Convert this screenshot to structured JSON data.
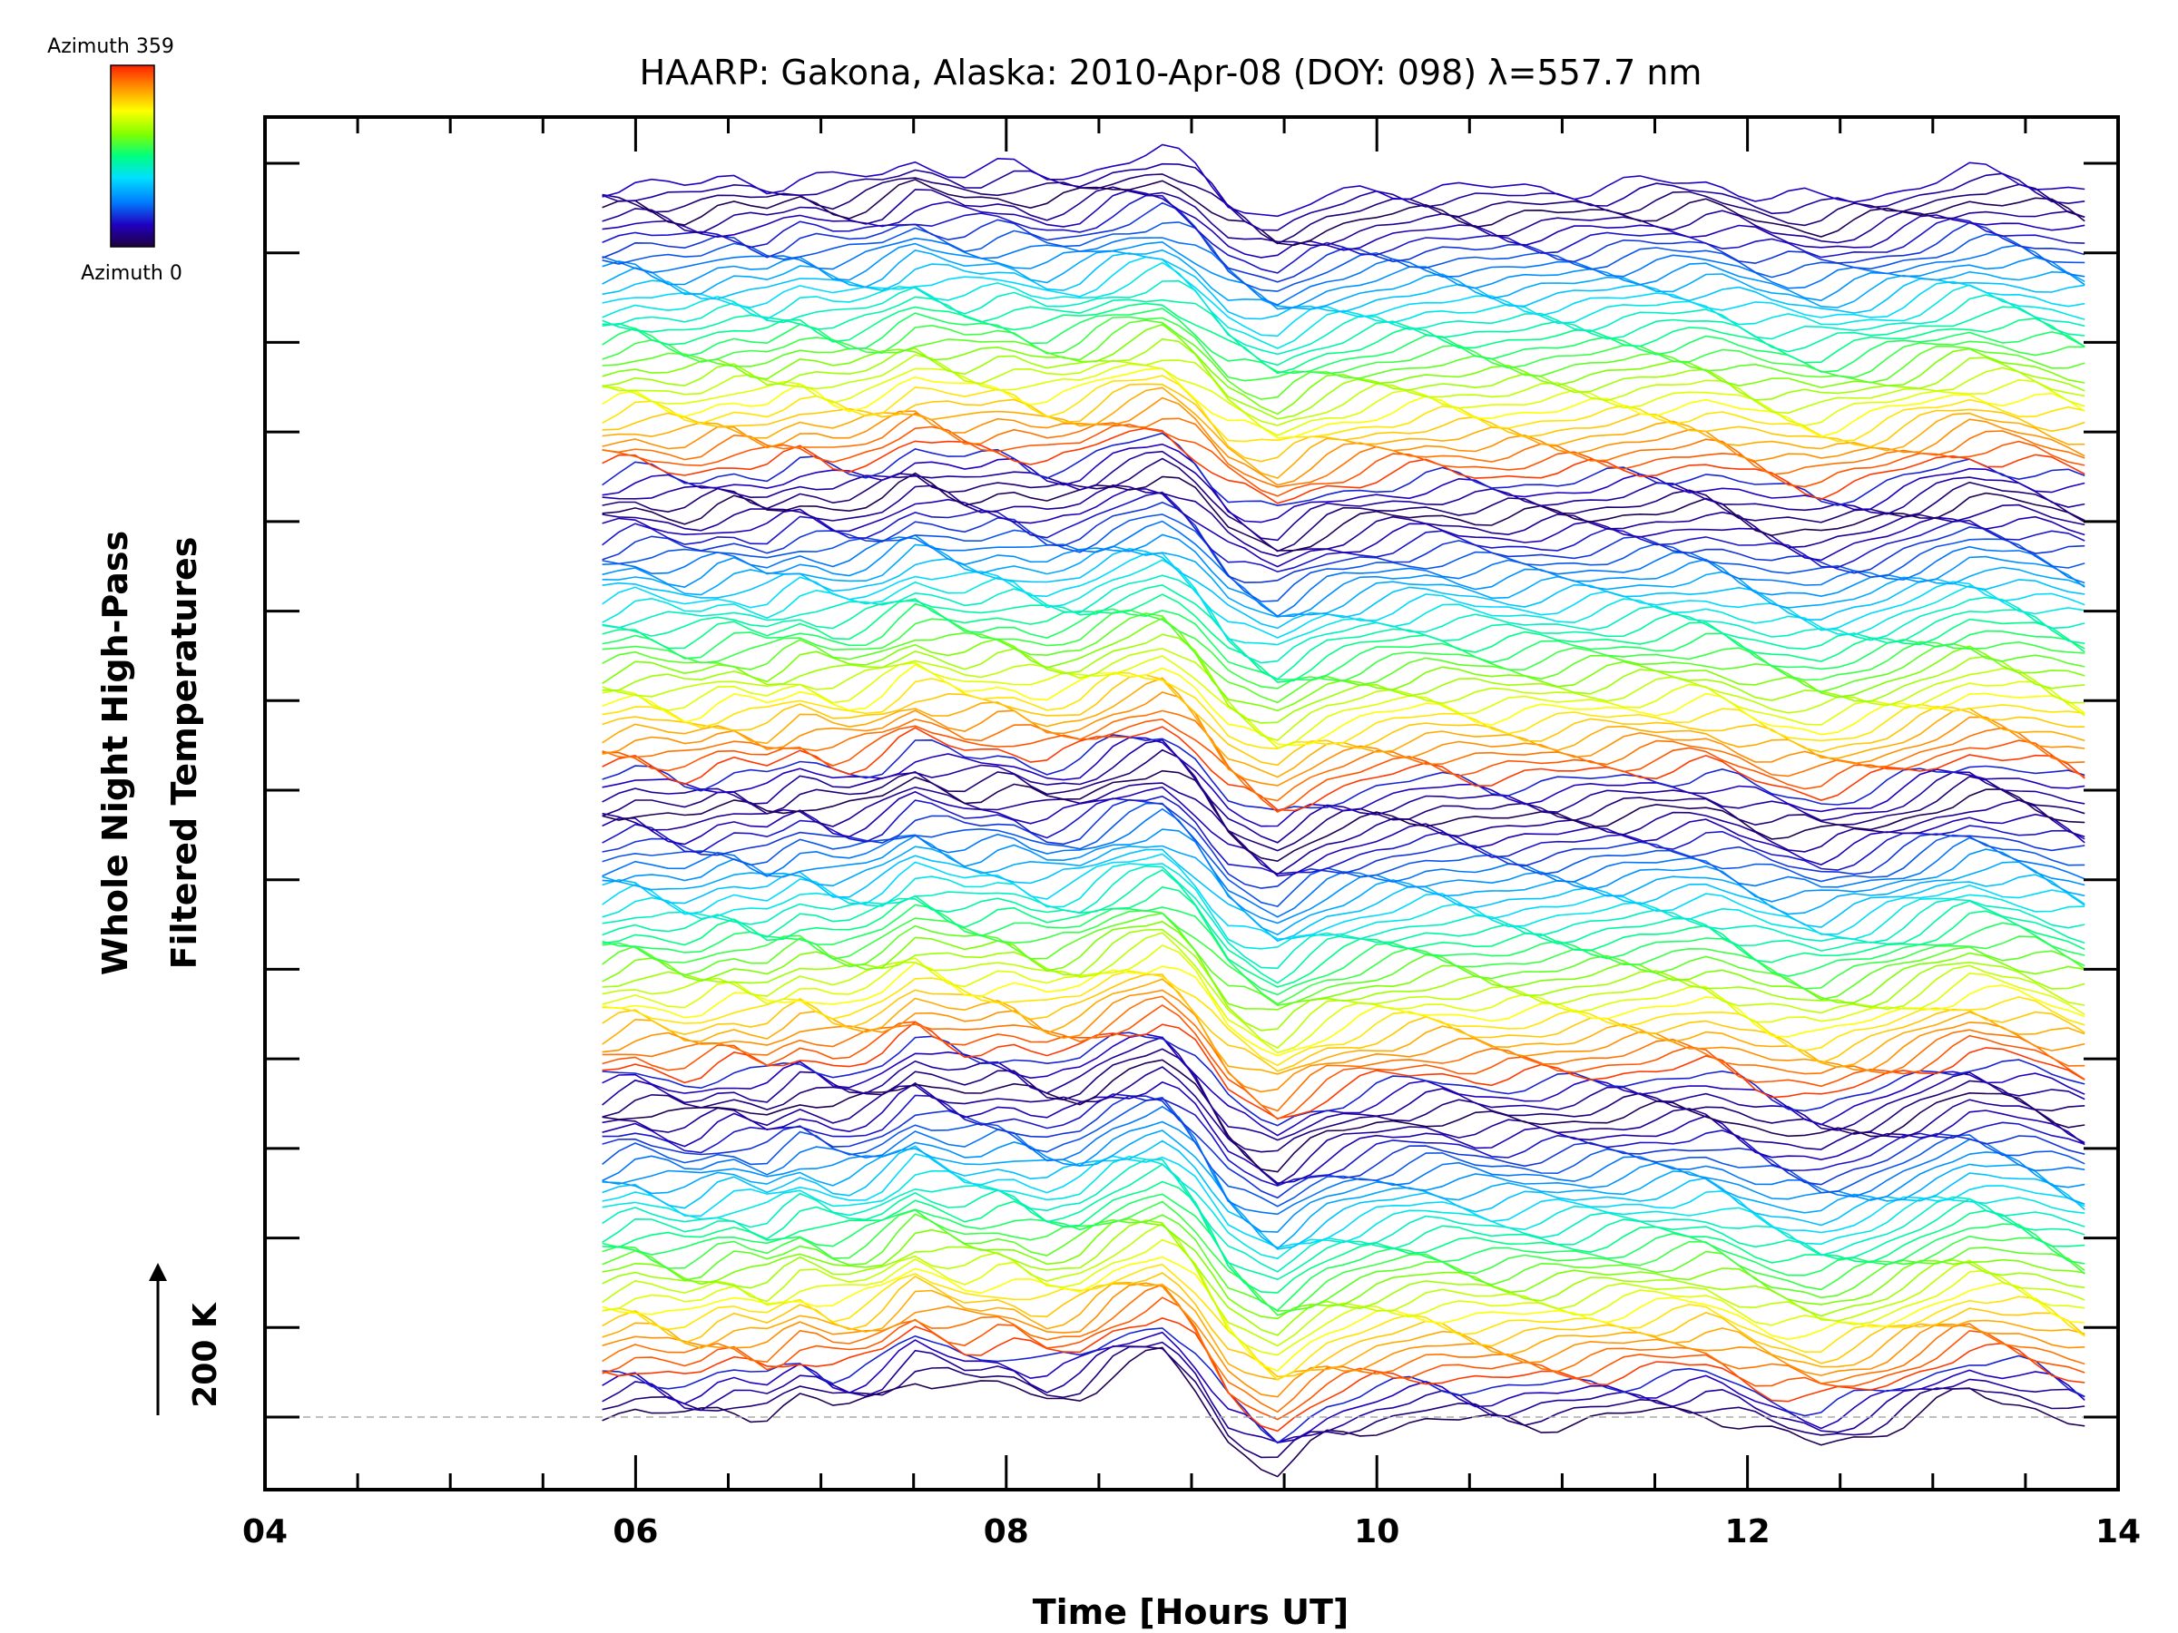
{
  "chart_data": {
    "type": "line",
    "title": "HAARP: Gakona,  Alaska: 2010-Apr-08 (DOY: 098) λ=557.7 nm",
    "xlabel": "Time [Hours UT]",
    "ylabel_line1": "Whole Night High-Pass",
    "ylabel_line2": "Filtered Temperatures",
    "xlim": [
      4,
      14
    ],
    "x_ticks": [
      "04",
      "06",
      "08",
      "10",
      "12",
      "14"
    ],
    "scale_bar_label": "200 K",
    "colorbar": {
      "top_label": "Azimuth 359",
      "bottom_label": "Azimuth 0",
      "colors": [
        "#ff2000",
        "#ff9000",
        "#ffff00",
        "#80ff00",
        "#00ff80",
        "#00e0ff",
        "#0080ff",
        "#2000c0",
        "#200040"
      ]
    },
    "n_traces": 140,
    "x_start": 5.82,
    "x_end": 13.82,
    "base_profile": {
      "x": [
        5.82,
        6.0,
        6.3,
        6.5,
        6.7,
        6.9,
        7.1,
        7.3,
        7.5,
        7.65,
        7.8,
        8.0,
        8.2,
        8.4,
        8.6,
        8.85,
        9.0,
        9.2,
        9.45,
        9.7,
        10.0,
        10.3,
        10.6,
        11.0,
        11.4,
        11.8,
        12.1,
        12.4,
        12.7,
        13.0,
        13.2,
        13.5,
        13.82
      ],
      "y": [
        0,
        8,
        -4,
        10,
        2,
        18,
        6,
        14,
        38,
        30,
        22,
        28,
        14,
        20,
        40,
        52,
        30,
        -20,
        -48,
        -22,
        -8,
        0,
        -6,
        -4,
        2,
        6,
        -14,
        -24,
        -12,
        8,
        20,
        12,
        -6
      ]
    },
    "lines_per_cycle": 34,
    "scale_bar_kelvin": 200
  }
}
